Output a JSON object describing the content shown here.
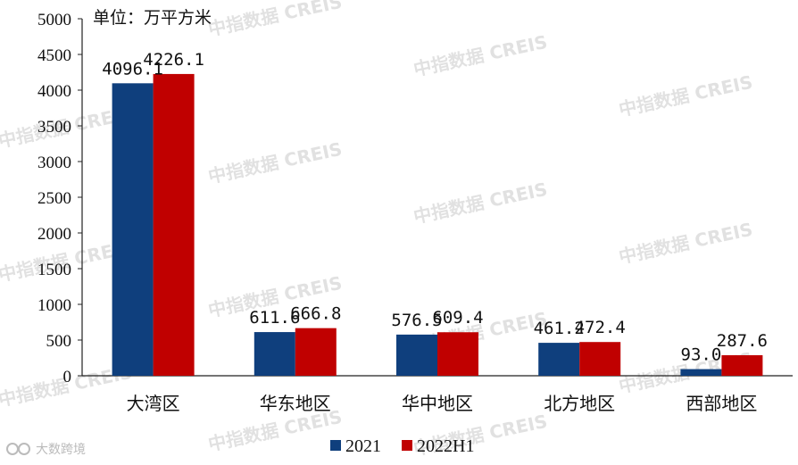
{
  "chart_data": {
    "type": "bar",
    "unit_label": "单位：万平方米",
    "categories": [
      "大湾区",
      "华东地区",
      "华中地区",
      "北方地区",
      "西部地区"
    ],
    "series": [
      {
        "name": "2021",
        "color": "#0f3f7d",
        "values": [
          4096.1,
          611.6,
          576.5,
          461.2,
          93.0
        ],
        "labels": [
          "4096.1",
          "611.6",
          "576.5",
          "461.2",
          "93.0"
        ]
      },
      {
        "name": "2022H1",
        "color": "#c00000",
        "values": [
          4226.1,
          666.8,
          609.4,
          472.4,
          287.6
        ],
        "labels": [
          "4226.1",
          "666.8",
          "609.4",
          "472.4",
          "287.6"
        ]
      }
    ],
    "ylim": [
      0,
      5000
    ],
    "yticks": [
      0,
      500,
      1000,
      1500,
      2000,
      2500,
      3000,
      3500,
      4000,
      4500,
      5000
    ],
    "grid": false,
    "legend_position": "bottom-center"
  },
  "watermark_text": "中指数据 CREIS",
  "source_text": "大数跨境"
}
